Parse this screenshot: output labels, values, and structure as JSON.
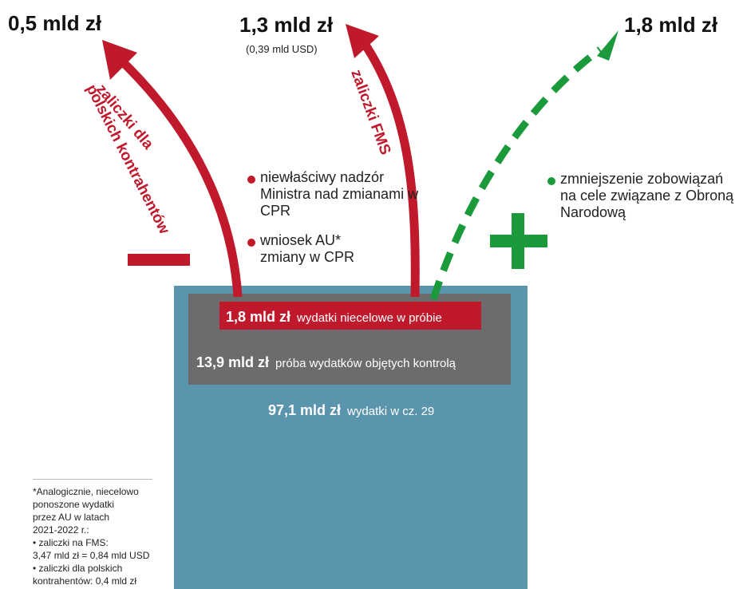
{
  "colors": {
    "red": "#c0192c",
    "green": "#1a9a3b",
    "blue_box": "#5a95ad",
    "grey_box": "#6c6c6e"
  },
  "left_amount": "0,5 mld zł",
  "mid_amount": "1,3 mld zł",
  "mid_amount_sub": "(0,39 mld USD)",
  "right_amount": "1,8 mld zł",
  "left_arrow_label_line1": "zaliczki dla",
  "left_arrow_label_line2": "polskich kontrahentów",
  "mid_arrow_label": "zaliczki FMS",
  "red_notes": [
    "niewłaściwy nadzór Ministra nad zmianami w CPR",
    "wniosek AU* zmiany w CPR"
  ],
  "green_note": "zmniejszenie zobowiązań na cele związane z Obroną Narodową",
  "minus_sign": "−",
  "plus_sign": "+",
  "red_bar": {
    "amount": "1,8 mld zł",
    "label": "wydatki niecelowe w próbie"
  },
  "grey_bar": {
    "amount": "13,9 mld zł",
    "label": "próba wydatków objętych kontrolą"
  },
  "blue_bar": {
    "amount": "97,1 mld zł",
    "label": "wydatki w cz. 29"
  },
  "footnote_lines": [
    "*Analogicznie, niecelowo",
    "ponoszone wydatki",
    "przez AU w latach",
    "2021-2022 r.:",
    "• zaliczki na FMS:",
    "3,47 mld zł = 0,84 mld USD",
    "• zaliczki dla polskich",
    "kontrahentów: 0,4 mld zł"
  ]
}
